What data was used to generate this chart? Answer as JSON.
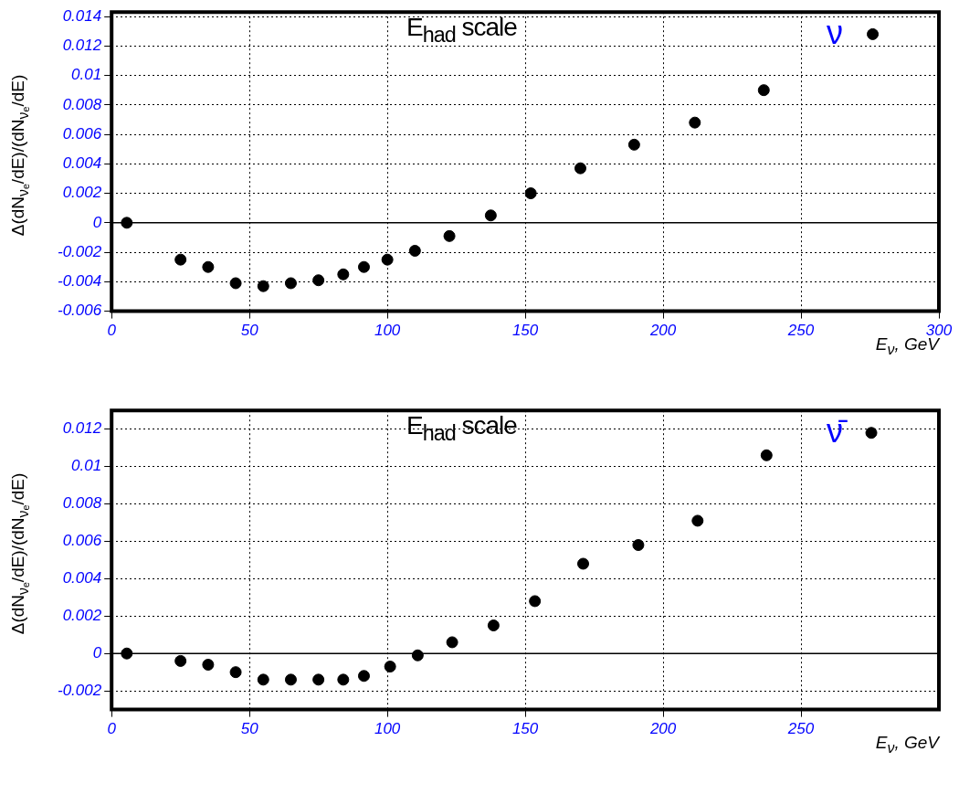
{
  "chart_data": [
    {
      "type": "scatter",
      "ylabel": "Δ(dN$_{νₑ}$/dE)/(dN$_{νₑ}$/dE)",
      "xlabel": "E$_{ν}$, GeV",
      "annotations": [
        "E$_{had}$ scale",
        "ν"
      ],
      "x": [
        5.5,
        25,
        35,
        45,
        55,
        65,
        75,
        84,
        91.5,
        100,
        110,
        122.5,
        137.5,
        152,
        170,
        189.5,
        211.5,
        236.5,
        276
      ],
      "series": [
        {
          "color": "#000000",
          "values": [
            0,
            -0.0025,
            -0.003,
            -0.0041,
            -0.0043,
            -0.0041,
            -0.0039,
            -0.0035,
            -0.003,
            -0.0025,
            -0.0019,
            -0.0009,
            0.0005,
            0.002,
            0.0037,
            0.0053,
            0.0068,
            0.009,
            0.0128
          ]
        }
      ],
      "xlim": [
        0,
        300
      ],
      "xticks": [
        0,
        50,
        100,
        150,
        200,
        250,
        300
      ],
      "ylim": [
        -0.006,
        0.0143
      ],
      "yticks": [
        -0.006,
        -0.004,
        -0.002,
        0,
        0.002,
        0.004,
        0.006,
        0.008,
        0.01,
        0.012,
        0.014
      ],
      "grid": true,
      "marker": "circle",
      "ref_lines": [
        {
          "axis": "y",
          "value": 0,
          "color": "#000000",
          "line_style": "solid"
        }
      ]
    },
    {
      "type": "scatter",
      "ylabel": "Δ(dN$_{νₑ}$/dE)/(dN$_{νₑ}$/dE)",
      "xlabel": "E$_{ν}$, GeV",
      "annotations": [
        "E$_{had}$ scale",
        "ν̄"
      ],
      "x": [
        5.5,
        25,
        35,
        45,
        55,
        65,
        75,
        84,
        91.5,
        101,
        111,
        123.5,
        138.5,
        153.5,
        171,
        191,
        212.5,
        237.5,
        275.5
      ],
      "series": [
        {
          "color": "#000000",
          "values": [
            0,
            -0.0004,
            -0.0006,
            -0.001,
            -0.0014,
            -0.0014,
            -0.0014,
            -0.0014,
            -0.0012,
            -0.0007,
            -0.0001,
            0.0006,
            0.0015,
            0.0028,
            0.0048,
            0.0058,
            0.0071,
            0.0106,
            0.0118
          ]
        }
      ],
      "xlim": [
        0,
        300
      ],
      "xticks": [
        0,
        50,
        100,
        150,
        200,
        250
      ],
      "ylim": [
        -0.003,
        0.013
      ],
      "yticks": [
        -0.002,
        0,
        0.002,
        0.004,
        0.006,
        0.008,
        0.01,
        0.012
      ],
      "grid": true,
      "marker": "circle",
      "ref_lines": [
        {
          "axis": "y",
          "value": 0,
          "color": "#000000",
          "line_style": "solid"
        }
      ]
    }
  ]
}
